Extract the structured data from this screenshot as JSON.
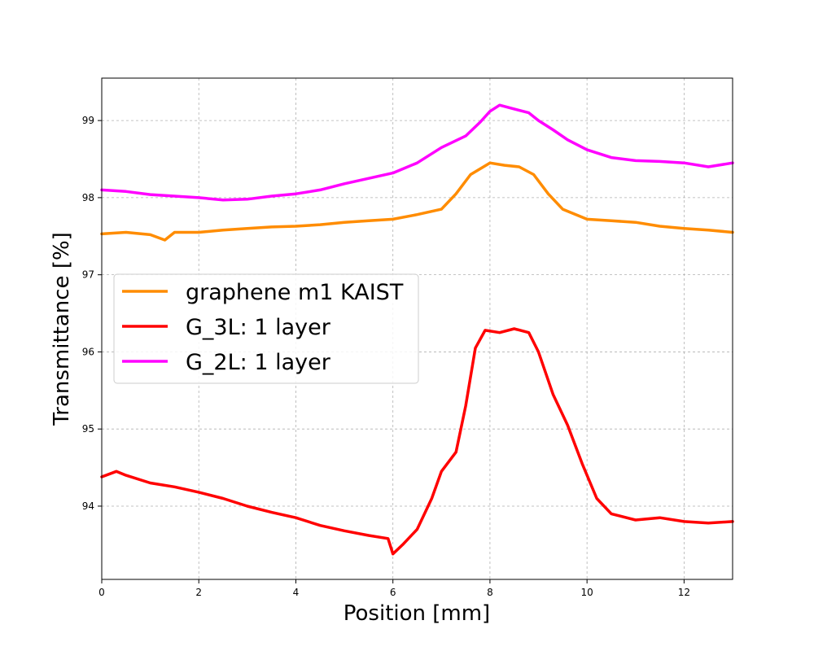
{
  "chart_data": {
    "type": "line",
    "title": "",
    "xlabel": "Position [mm]",
    "ylabel": "Transmittance [%]",
    "xlim": [
      0,
      13
    ],
    "ylim": [
      93.05,
      99.55
    ],
    "xticks": [
      0,
      2,
      4,
      6,
      8,
      10,
      12
    ],
    "yticks": [
      94,
      95,
      96,
      97,
      98,
      99
    ],
    "grid": true,
    "legend": "center-left",
    "series": [
      {
        "name": "graphene m1 KAIST",
        "color": "#ff8c00",
        "x": [
          0,
          0.5,
          1,
          1.3,
          1.5,
          2,
          2.5,
          3,
          3.5,
          4,
          4.5,
          5,
          5.5,
          6,
          6.5,
          7,
          7.3,
          7.6,
          8,
          8.3,
          8.6,
          8.9,
          9.2,
          9.5,
          10,
          10.5,
          11,
          11.5,
          12,
          12.5,
          13
        ],
        "values": [
          97.53,
          97.55,
          97.52,
          97.45,
          97.55,
          97.55,
          97.58,
          97.6,
          97.62,
          97.63,
          97.65,
          97.68,
          97.7,
          97.72,
          97.78,
          97.85,
          98.05,
          98.3,
          98.45,
          98.42,
          98.4,
          98.3,
          98.05,
          97.85,
          97.72,
          97.7,
          97.68,
          97.63,
          97.6,
          97.58,
          97.55
        ]
      },
      {
        "name": "G_3L: 1 layer",
        "color": "#ff0000",
        "x": [
          0,
          0.3,
          0.5,
          1,
          1.5,
          2,
          2.5,
          3,
          3.5,
          4,
          4.5,
          5,
          5.5,
          5.9,
          6,
          6.2,
          6.5,
          6.8,
          7,
          7.3,
          7.5,
          7.7,
          7.9,
          8.2,
          8.5,
          8.8,
          9,
          9.3,
          9.6,
          9.9,
          10.2,
          10.5,
          11,
          11.5,
          12,
          12.5,
          13
        ],
        "values": [
          94.38,
          94.45,
          94.4,
          94.3,
          94.25,
          94.18,
          94.1,
          94.0,
          93.92,
          93.85,
          93.75,
          93.68,
          93.62,
          93.58,
          93.38,
          93.5,
          93.7,
          94.1,
          94.45,
          94.7,
          95.3,
          96.05,
          96.28,
          96.25,
          96.3,
          96.25,
          96.0,
          95.45,
          95.05,
          94.55,
          94.1,
          93.9,
          93.82,
          93.85,
          93.8,
          93.78,
          93.8
        ]
      },
      {
        "name": "G_2L: 1 layer",
        "color": "#ff00ff",
        "x": [
          0,
          0.5,
          1,
          1.5,
          2,
          2.5,
          3,
          3.5,
          4,
          4.5,
          5,
          5.5,
          6,
          6.5,
          7,
          7.5,
          7.8,
          8,
          8.2,
          8.5,
          8.8,
          9,
          9.3,
          9.6,
          10,
          10.5,
          11,
          11.5,
          12,
          12.5,
          13
        ],
        "values": [
          98.1,
          98.08,
          98.04,
          98.02,
          98.0,
          97.97,
          97.98,
          98.02,
          98.05,
          98.1,
          98.18,
          98.25,
          98.32,
          98.45,
          98.65,
          98.8,
          98.98,
          99.12,
          99.2,
          99.15,
          99.1,
          99.0,
          98.88,
          98.75,
          98.62,
          98.52,
          98.48,
          98.47,
          98.45,
          98.4,
          98.45
        ]
      }
    ]
  }
}
